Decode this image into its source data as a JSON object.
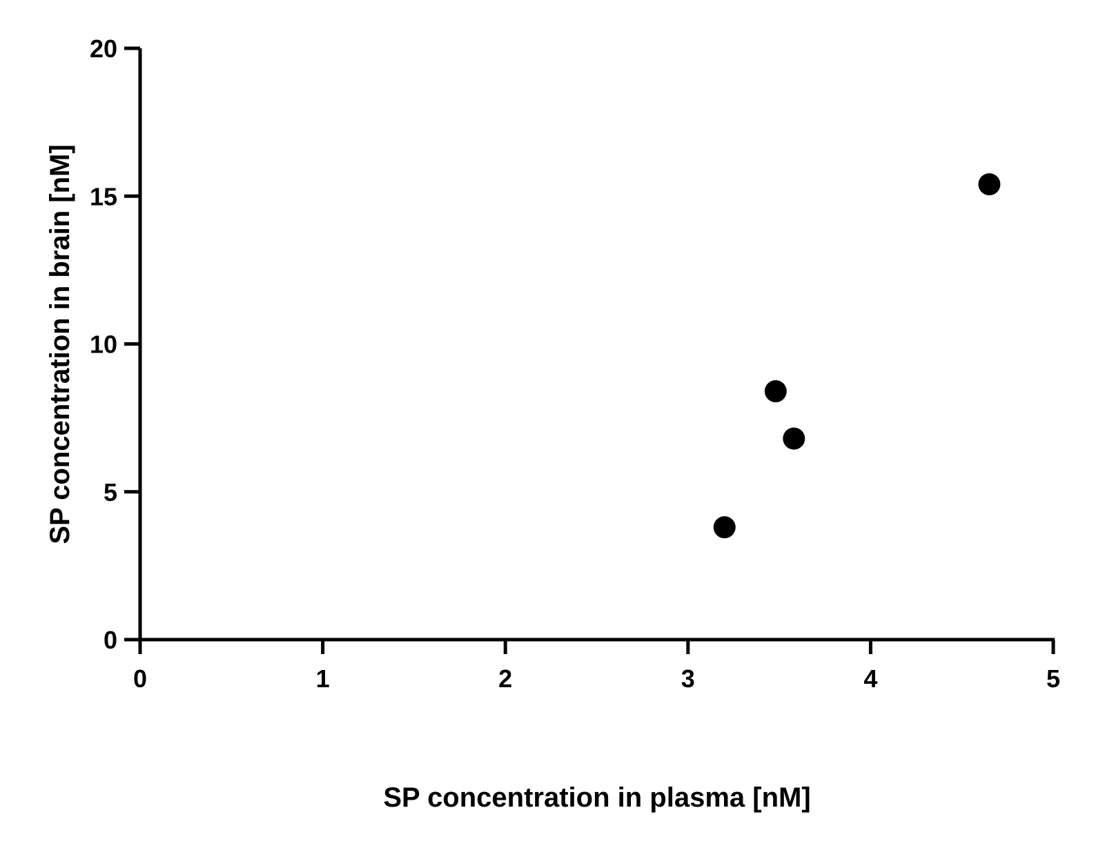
{
  "chart_data": {
    "type": "scatter",
    "title": "",
    "xlabel": "SP concentration in plasma [nM]",
    "ylabel": "SP concentration in brain [nM]",
    "xlim": [
      0,
      5
    ],
    "ylim": [
      0,
      20
    ],
    "x_ticks": [
      0,
      1,
      2,
      3,
      4,
      5
    ],
    "y_ticks": [
      0,
      5,
      10,
      15,
      20
    ],
    "x_tick_labels": [
      "0",
      "1",
      "2",
      "3",
      "4",
      "5"
    ],
    "y_tick_labels": [
      "0",
      "5",
      "10",
      "15",
      "20"
    ],
    "grid": false,
    "legend": "none",
    "series": [
      {
        "marker": "filled-circle",
        "color": "#000000",
        "points": [
          {
            "x": 3.2,
            "y": 3.8
          },
          {
            "x": 3.48,
            "y": 8.4
          },
          {
            "x": 3.58,
            "y": 6.8
          },
          {
            "x": 4.65,
            "y": 15.4
          }
        ]
      }
    ]
  }
}
